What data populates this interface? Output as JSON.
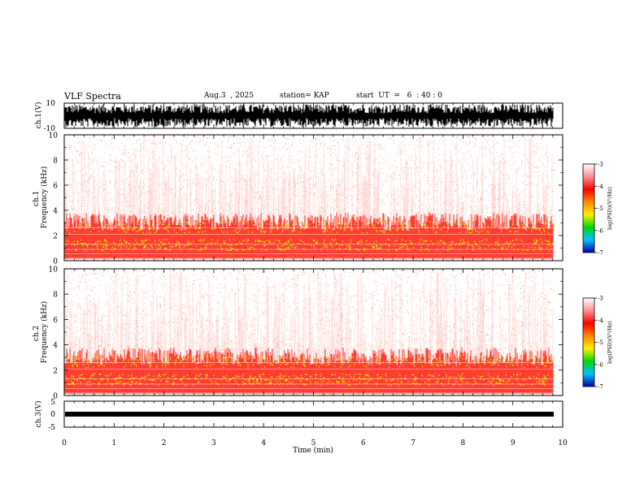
{
  "header": {
    "title": "VLF Spectra",
    "date": "Aug.3  , 2025",
    "station": "station= KAP",
    "start": "start  UT  =   6  : 40 : 0"
  },
  "chart_data": [
    {
      "type": "line",
      "name": "ch1-waveform",
      "ylabel": "ch.1(V)",
      "ylim": [
        -10,
        10
      ],
      "yticks": [
        "10",
        "-10"
      ],
      "description_values": "dense black waveform filling range"
    },
    {
      "type": "heatmap",
      "name": "ch1-spectrogram",
      "ylabel": "ch.1\nFrequency  (kHz)",
      "ylabel_lines": [
        "ch.1",
        "Frequency  (kHz)"
      ],
      "ylim": [
        0,
        10
      ],
      "yticks": [
        "0",
        "2",
        "4",
        "6",
        "8",
        "10"
      ],
      "colorbar": {
        "label": "log(PSD)(V²/Hz)",
        "range": [
          -7,
          -3
        ],
        "ticks": [
          "-3",
          "-4",
          "-5",
          "-6",
          "-7"
        ]
      }
    },
    {
      "type": "heatmap",
      "name": "ch2-spectrogram",
      "ylabel_lines": [
        "ch.2",
        "Frequency  (kHz)"
      ],
      "ylim": [
        0,
        10
      ],
      "yticks": [
        "0",
        "2",
        "4",
        "6",
        "8",
        "10"
      ],
      "colorbar": {
        "label": "log(PSD)(V²/Hz)",
        "range": [
          -7,
          -3
        ],
        "ticks": [
          "-3",
          "-4",
          "-5",
          "-6",
          "-7"
        ]
      }
    },
    {
      "type": "line",
      "name": "ch3-waveform",
      "ylabel": "ch.3(V)",
      "ylim": [
        -5,
        5
      ],
      "yticks": [
        "5",
        "0",
        "-5"
      ],
      "level": 0
    }
  ],
  "xaxis": {
    "label": "Time  (min)",
    "ticks": [
      "0",
      "1",
      "2",
      "3",
      "4",
      "5",
      "6",
      "7",
      "8",
      "9",
      "10"
    ],
    "data_end": 9.82
  },
  "colors": {
    "spec_dark": "#ff2010",
    "spec_light": "#ffb8b0",
    "spec_yellow": "#d8e400",
    "cb_stops": [
      "#ffffff",
      "#ff9090",
      "#ff0000",
      "#ff8800",
      "#ffee00",
      "#00d800",
      "#00c0ff",
      "#0000a0"
    ]
  }
}
